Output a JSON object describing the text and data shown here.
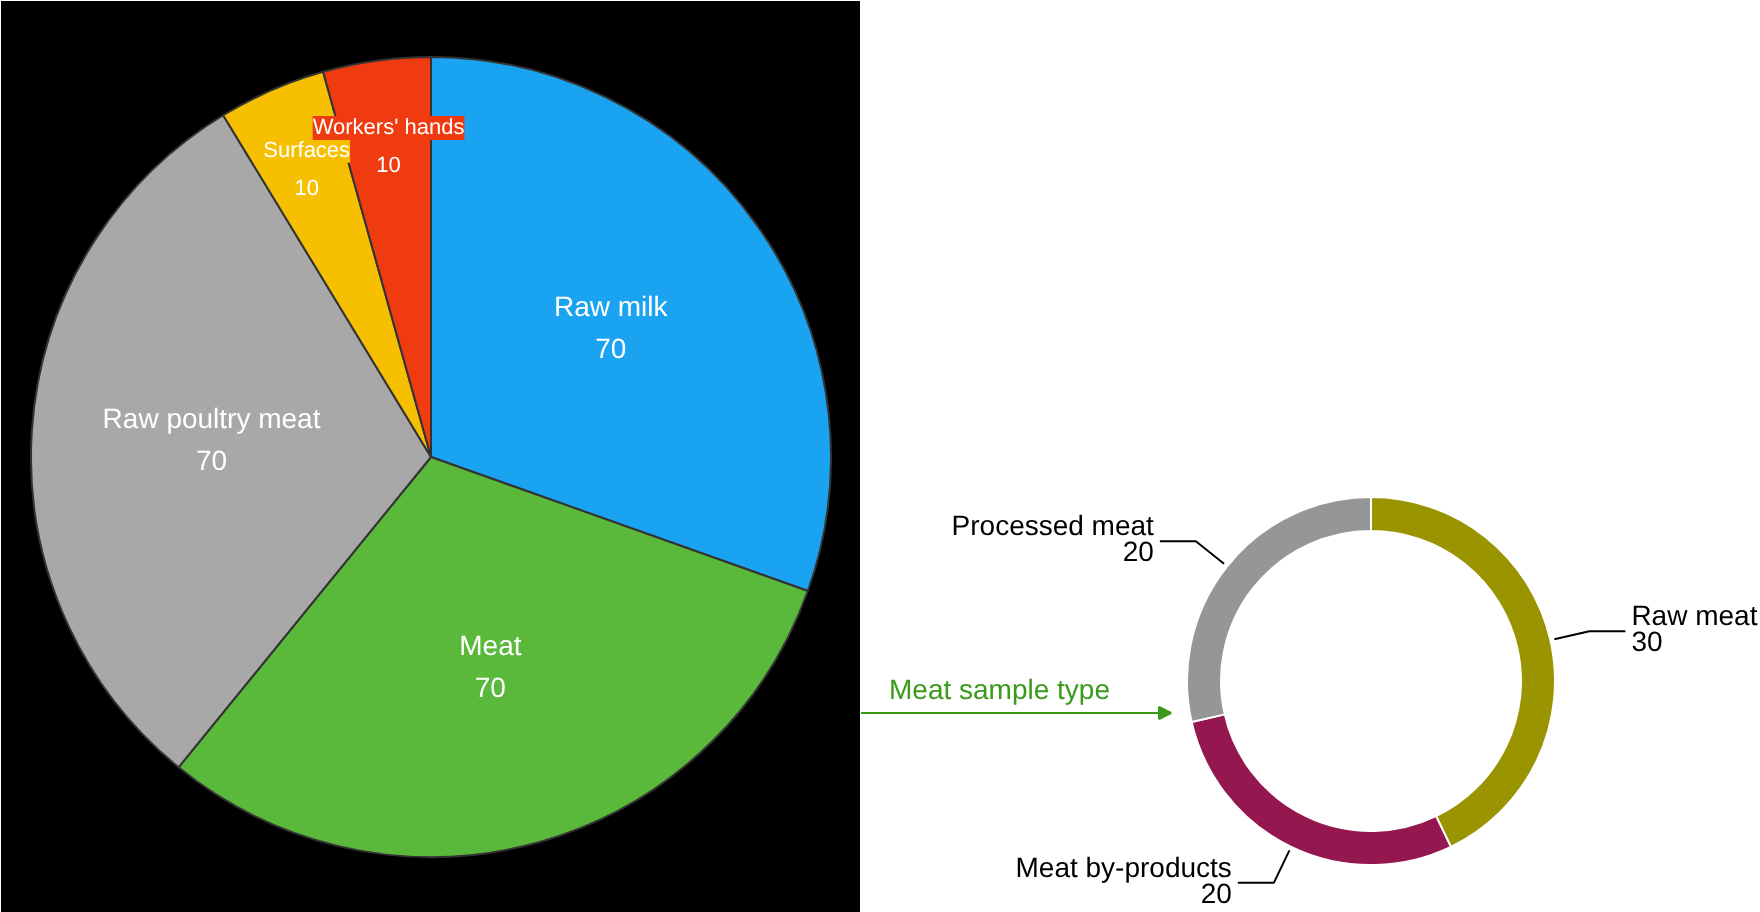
{
  "chart_data": [
    {
      "type": "pie",
      "categories": [
        "Raw milk",
        "Meat",
        "Raw poultry meat",
        "Surfaces",
        "Workers' hands"
      ],
      "values": [
        70,
        70,
        70,
        10,
        10
      ],
      "colors": [
        "#1aa3f0",
        "#5ab83a",
        "#a8a8a8",
        "#f6c000",
        "#f03a10"
      ],
      "data_labels": true
    },
    {
      "type": "donut",
      "categories": [
        "Raw meat",
        "Meat by-products",
        "Processed meat"
      ],
      "values": [
        30,
        20,
        20
      ],
      "colors": [
        "#999400",
        "#95174f",
        "#969696"
      ],
      "data_labels": true,
      "annotations": [
        "Meat sample type"
      ]
    }
  ]
}
